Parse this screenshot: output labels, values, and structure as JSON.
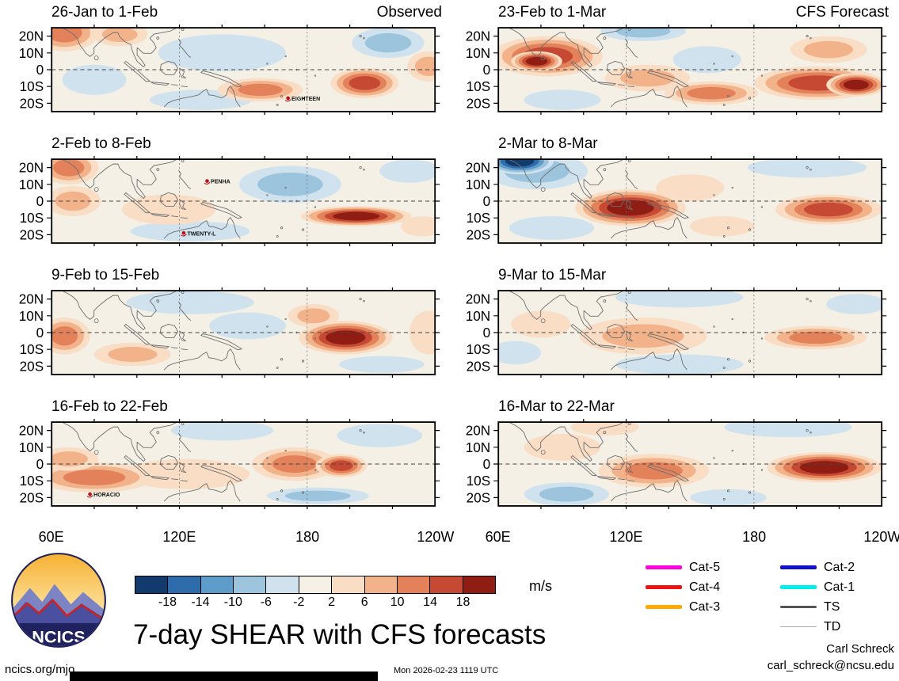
{
  "chart_data": {
    "type": "heatmap",
    "title": "7-day SHEAR with CFS forecasts",
    "units": "m/s",
    "x_ticks": [
      "60E",
      "120E",
      "180",
      "120W"
    ],
    "y_ticks": [
      "20N",
      "10N",
      "0",
      "10S",
      "20S"
    ],
    "colorbar": {
      "levels": [
        -18,
        -14,
        -10,
        -6,
        -2,
        2,
        6,
        10,
        14,
        18
      ],
      "tick_labels": [
        "-18",
        "-14",
        "-10",
        "-6",
        "-2",
        "2",
        "6",
        "10",
        "14",
        "18"
      ],
      "colors": [
        "#123a6d",
        "#2e6bab",
        "#5e9cc9",
        "#9cc4dd",
        "#cfe2ee",
        "#f5f1e6",
        "#f9ddc5",
        "#f2b28a",
        "#e2815a",
        "#c64a33",
        "#8f1d14"
      ]
    },
    "columns": [
      {
        "name": "observed",
        "panels": [
          {
            "title": "26-Jan to 1-Feb",
            "corner_label": "Observed",
            "storms": [
              {
                "name": "EIGHTEEN",
                "lon": 171,
                "lat": -17
              }
            ],
            "features": [
              {
                "lon": 140,
                "lat": 10,
                "dlon": 30,
                "dlat": 11,
                "value": -4
              },
              {
                "lon": 130,
                "lat": -18,
                "dlon": 24,
                "dlat": 6,
                "value": -4
              },
              {
                "lon": 80,
                "lat": -6,
                "dlon": 15,
                "dlat": 9,
                "value": -4
              },
              {
                "lon": 218,
                "lat": 16,
                "dlon": 17,
                "dlat": 9,
                "value": -8
              },
              {
                "lon": 66,
                "lat": 22,
                "dlon": 16,
                "dlat": 11,
                "value": 12
              },
              {
                "lon": 92,
                "lat": 21,
                "dlon": 13,
                "dlat": 7,
                "value": 8
              },
              {
                "lon": 158,
                "lat": -12,
                "dlon": 20,
                "dlat": 7,
                "value": 12
              },
              {
                "lon": 207,
                "lat": -8,
                "dlon": 16,
                "dlat": 9,
                "value": 16
              },
              {
                "lon": 237,
                "lat": 2,
                "dlon": 10,
                "dlat": 9,
                "value": 8
              }
            ]
          },
          {
            "title": "2-Feb to 8-Feb",
            "storms": [
              {
                "name": "PENHA",
                "lon": 133,
                "lat": 12
              },
              {
                "name": "TWENTY-L",
                "lon": 122,
                "lat": -19
              }
            ],
            "features": [
              {
                "lon": 172,
                "lat": 10,
                "dlon": 24,
                "dlat": 11,
                "value": -8
              },
              {
                "lon": 125,
                "lat": -18,
                "dlon": 28,
                "dlat": 6,
                "value": -4
              },
              {
                "lon": 228,
                "lat": 18,
                "dlon": 14,
                "dlat": 7,
                "value": -4
              },
              {
                "lon": 115,
                "lat": -5,
                "dlon": 22,
                "dlat": 9,
                "value": 4
              },
              {
                "lon": 68,
                "lat": 20,
                "dlon": 14,
                "dlat": 10,
                "value": 12
              },
              {
                "lon": 70,
                "lat": 0,
                "dlon": 13,
                "dlat": 9,
                "value": 8
              },
              {
                "lon": 234,
                "lat": -15,
                "dlon": 10,
                "dlat": 6,
                "value": 4
              },
              {
                "lon": 203,
                "lat": -9,
                "dlon": 26,
                "dlat": 6,
                "value": 20
              }
            ]
          },
          {
            "title": "9-Feb to 15-Feb",
            "storms": [],
            "features": [
              {
                "lon": 125,
                "lat": 18,
                "dlon": 30,
                "dlat": 7,
                "value": -4
              },
              {
                "lon": 152,
                "lat": 4,
                "dlon": 18,
                "dlat": 8,
                "value": -4
              },
              {
                "lon": 215,
                "lat": -19,
                "dlon": 20,
                "dlat": 5,
                "value": -4
              },
              {
                "lon": 66,
                "lat": -2,
                "dlon": 12,
                "dlat": 11,
                "value": 12
              },
              {
                "lon": 98,
                "lat": -13,
                "dlon": 18,
                "dlat": 7,
                "value": 8
              },
              {
                "lon": 183,
                "lat": 10,
                "dlon": 12,
                "dlat": 7,
                "value": 8
              },
              {
                "lon": 237,
                "lat": 0,
                "dlon": 9,
                "dlat": 13,
                "value": 4
              },
              {
                "lon": 198,
                "lat": -3,
                "dlon": 22,
                "dlat": 10,
                "value": 20
              }
            ]
          },
          {
            "title": "16-Feb to 22-Feb",
            "storms": [
              {
                "name": "HORACIO",
                "lon": 78,
                "lat": -18
              }
            ],
            "features": [
              {
                "lon": 214,
                "lat": 17,
                "dlon": 20,
                "dlat": 7,
                "value": -4
              },
              {
                "lon": 140,
                "lat": 20,
                "dlon": 24,
                "dlat": 6,
                "value": -4
              },
              {
                "lon": 185,
                "lat": -19,
                "dlon": 24,
                "dlat": 5,
                "value": -8
              },
              {
                "lon": 123,
                "lat": -6,
                "dlon": 30,
                "dlat": 9,
                "value": 4
              },
              {
                "lon": 80,
                "lat": -8,
                "dlon": 28,
                "dlat": 9,
                "value": 12
              },
              {
                "lon": 68,
                "lat": 3,
                "dlon": 14,
                "dlat": 7,
                "value": 8
              },
              {
                "lon": 174,
                "lat": 0,
                "dlon": 20,
                "dlat": 10,
                "value": 12
              },
              {
                "lon": 196,
                "lat": -1,
                "dlon": 12,
                "dlat": 7,
                "value": 16
              }
            ]
          }
        ]
      },
      {
        "name": "forecast",
        "panels": [
          {
            "title": "23-Feb to 1-Mar",
            "corner_label": "CFS Forecast",
            "storms": [],
            "features": [
              {
                "lon": 128,
                "lat": 23,
                "dlon": 20,
                "dlat": 6,
                "value": -8
              },
              {
                "lon": 158,
                "lat": 6,
                "dlon": 16,
                "dlat": 8,
                "value": -4
              },
              {
                "lon": 90,
                "lat": -18,
                "dlon": 18,
                "dlat": 6,
                "value": -4
              },
              {
                "lon": 130,
                "lat": -5,
                "dlon": 20,
                "dlat": 8,
                "value": 8
              },
              {
                "lon": 215,
                "lat": 12,
                "dlon": 18,
                "dlat": 8,
                "value": 8
              },
              {
                "lon": 83,
                "lat": 8,
                "dlon": 26,
                "dlat": 12,
                "value": 16
              },
              {
                "lon": 78,
                "lat": 5,
                "dlon": 12,
                "dlat": 6,
                "value": 20
              },
              {
                "lon": 160,
                "lat": -14,
                "dlon": 22,
                "dlat": 7,
                "value": 12
              },
              {
                "lon": 210,
                "lat": -8,
                "dlon": 30,
                "dlat": 10,
                "value": 16
              },
              {
                "lon": 228,
                "lat": -9,
                "dlon": 14,
                "dlat": 7,
                "value": 20
              }
            ]
          },
          {
            "title": "2-Mar to 8-Mar",
            "storms": [],
            "features": [
              {
                "lon": 78,
                "lat": 18,
                "dlon": 24,
                "dlat": 11,
                "value": -8
              },
              {
                "lon": 70,
                "lat": 24,
                "dlon": 16,
                "dlat": 8,
                "value": -20
              },
              {
                "lon": 85,
                "lat": -16,
                "dlon": 20,
                "dlat": 7,
                "value": -4
              },
              {
                "lon": 205,
                "lat": 20,
                "dlon": 28,
                "dlat": 6,
                "value": -4
              },
              {
                "lon": 150,
                "lat": 8,
                "dlon": 16,
                "dlat": 8,
                "value": 4
              },
              {
                "lon": 165,
                "lat": -15,
                "dlon": 15,
                "dlat": 6,
                "value": 4
              },
              {
                "lon": 122,
                "lat": -4,
                "dlon": 26,
                "dlat": 11,
                "value": 20
              },
              {
                "lon": 215,
                "lat": -5,
                "dlon": 25,
                "dlat": 9,
                "value": 16
              }
            ]
          },
          {
            "title": "9-Mar to 15-Mar",
            "storms": [],
            "features": [
              {
                "lon": 145,
                "lat": 21,
                "dlon": 30,
                "dlat": 6,
                "value": -4
              },
              {
                "lon": 145,
                "lat": -19,
                "dlon": 30,
                "dlat": 6,
                "value": -4
              },
              {
                "lon": 228,
                "lat": 17,
                "dlon": 14,
                "dlat": 6,
                "value": -4
              },
              {
                "lon": 68,
                "lat": -12,
                "dlon": 12,
                "dlat": 7,
                "value": -4
              },
              {
                "lon": 80,
                "lat": 5,
                "dlon": 14,
                "dlat": 8,
                "value": 4
              },
              {
                "lon": 128,
                "lat": -2,
                "dlon": 30,
                "dlat": 11,
                "value": 8
              },
              {
                "lon": 209,
                "lat": -3,
                "dlon": 24,
                "dlat": 7,
                "value": 12
              }
            ]
          },
          {
            "title": "16-Mar to 22-Mar",
            "storms": [],
            "features": [
              {
                "lon": 196,
                "lat": 22,
                "dlon": 30,
                "dlat": 6,
                "value": -4
              },
              {
                "lon": 168,
                "lat": -20,
                "dlon": 18,
                "dlat": 5,
                "value": -4
              },
              {
                "lon": 92,
                "lat": -18,
                "dlon": 20,
                "dlat": 7,
                "value": -8
              },
              {
                "lon": 90,
                "lat": 10,
                "dlon": 18,
                "dlat": 8,
                "value": 4
              },
              {
                "lon": 110,
                "lat": 22,
                "dlon": 16,
                "dlat": 5,
                "value": 4
              },
              {
                "lon": 133,
                "lat": -4,
                "dlon": 26,
                "dlat": 10,
                "value": 12
              },
              {
                "lon": 213,
                "lat": -2,
                "dlon": 27,
                "dlat": 9,
                "value": 20
              }
            ]
          }
        ]
      }
    ],
    "legend": {
      "col1": [
        {
          "label": "Cat-5",
          "color": "#ff00dd",
          "thickness": 5
        },
        {
          "label": "Cat-4",
          "color": "#ee1111",
          "thickness": 5
        },
        {
          "label": "Cat-3",
          "color": "#ffaa00",
          "thickness": 5
        }
      ],
      "col2": [
        {
          "label": "Cat-2",
          "color": "#1111cc",
          "thickness": 5
        },
        {
          "label": "Cat-1",
          "color": "#00eeee",
          "thickness": 5
        },
        {
          "label": "TS",
          "color": "#555555",
          "thickness": 3
        },
        {
          "label": "TD",
          "color": "#aaaaaa",
          "thickness": 1
        }
      ]
    }
  },
  "logo": {
    "text": "NCICS"
  },
  "footer": {
    "site": "ncics.org/mjo",
    "timestamp": "Mon 2026-02-23 1119 UTC",
    "credit_name": "Carl Schreck",
    "credit_email": "carl_schreck@ncsu.edu"
  }
}
